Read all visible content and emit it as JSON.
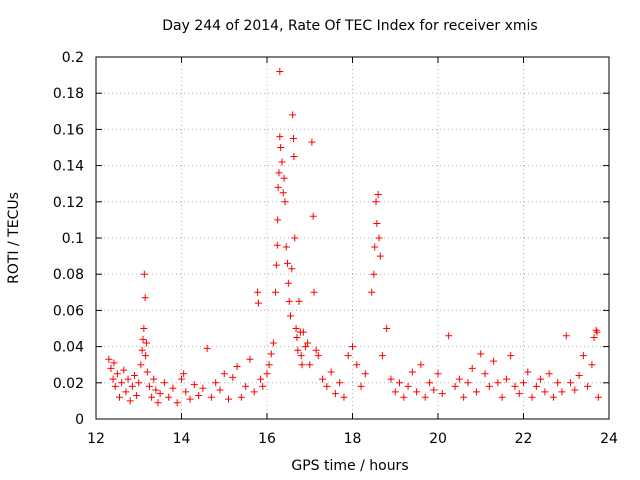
{
  "chart_data": {
    "type": "scatter",
    "title": "Day 244 of 2014, Rate Of TEC Index for receiver xmis",
    "xlabel": "GPS time / hours",
    "ylabel": "ROTI / TECUs",
    "xlim": [
      12,
      24
    ],
    "ylim": [
      0,
      0.2
    ],
    "xticks": [
      12,
      14,
      16,
      18,
      20,
      22,
      24
    ],
    "yticks": [
      0,
      0.02,
      0.04,
      0.06,
      0.08,
      0.1,
      0.12,
      0.14,
      0.16,
      0.18,
      0.2
    ],
    "xtick_labels": [
      "12",
      "14",
      "16",
      "18",
      "20",
      "22",
      "24"
    ],
    "ytick_labels": [
      "0",
      "0.02",
      "0.04",
      "0.06",
      "0.08",
      "0.1",
      "0.12",
      "0.14",
      "0.16",
      "0.18",
      "0.2"
    ],
    "grid": true,
    "marker": "+",
    "color": "#ff0000",
    "series": [
      {
        "name": "ROTI",
        "points": [
          [
            12.3,
            0.033
          ],
          [
            12.35,
            0.028
          ],
          [
            12.4,
            0.022
          ],
          [
            12.42,
            0.031
          ],
          [
            12.45,
            0.018
          ],
          [
            12.5,
            0.025
          ],
          [
            12.55,
            0.012
          ],
          [
            12.6,
            0.02
          ],
          [
            12.65,
            0.027
          ],
          [
            12.7,
            0.015
          ],
          [
            12.75,
            0.022
          ],
          [
            12.8,
            0.01
          ],
          [
            12.85,
            0.018
          ],
          [
            12.9,
            0.024
          ],
          [
            12.95,
            0.013
          ],
          [
            13.0,
            0.02
          ],
          [
            13.05,
            0.03
          ],
          [
            13.08,
            0.038
          ],
          [
            13.1,
            0.044
          ],
          [
            13.12,
            0.05
          ],
          [
            13.13,
            0.08
          ],
          [
            13.15,
            0.067
          ],
          [
            13.16,
            0.035
          ],
          [
            13.18,
            0.042
          ],
          [
            13.2,
            0.026
          ],
          [
            13.25,
            0.018
          ],
          [
            13.3,
            0.012
          ],
          [
            13.35,
            0.022
          ],
          [
            13.4,
            0.016
          ],
          [
            13.45,
            0.009
          ],
          [
            13.5,
            0.014
          ],
          [
            13.6,
            0.02
          ],
          [
            13.7,
            0.012
          ],
          [
            13.8,
            0.017
          ],
          [
            13.9,
            0.009
          ],
          [
            14.0,
            0.022
          ],
          [
            14.05,
            0.025
          ],
          [
            14.1,
            0.015
          ],
          [
            14.2,
            0.011
          ],
          [
            14.3,
            0.019
          ],
          [
            14.4,
            0.013
          ],
          [
            14.5,
            0.017
          ],
          [
            14.6,
            0.039
          ],
          [
            14.7,
            0.012
          ],
          [
            14.8,
            0.02
          ],
          [
            14.9,
            0.016
          ],
          [
            15.0,
            0.025
          ],
          [
            15.1,
            0.011
          ],
          [
            15.2,
            0.023
          ],
          [
            15.3,
            0.029
          ],
          [
            15.4,
            0.012
          ],
          [
            15.5,
            0.018
          ],
          [
            15.6,
            0.033
          ],
          [
            15.7,
            0.015
          ],
          [
            15.78,
            0.07
          ],
          [
            15.8,
            0.064
          ],
          [
            15.85,
            0.022
          ],
          [
            15.9,
            0.018
          ],
          [
            16.0,
            0.025
          ],
          [
            16.05,
            0.03
          ],
          [
            16.1,
            0.036
          ],
          [
            16.15,
            0.042
          ],
          [
            16.2,
            0.07
          ],
          [
            16.22,
            0.085
          ],
          [
            16.24,
            0.096
          ],
          [
            16.25,
            0.11
          ],
          [
            16.26,
            0.128
          ],
          [
            16.28,
            0.136
          ],
          [
            16.3,
            0.156
          ],
          [
            16.3,
            0.192
          ],
          [
            16.32,
            0.15
          ],
          [
            16.35,
            0.142
          ],
          [
            16.38,
            0.125
          ],
          [
            16.4,
            0.133
          ],
          [
            16.42,
            0.12
          ],
          [
            16.45,
            0.095
          ],
          [
            16.48,
            0.086
          ],
          [
            16.5,
            0.075
          ],
          [
            16.52,
            0.065
          ],
          [
            16.55,
            0.057
          ],
          [
            16.58,
            0.083
          ],
          [
            16.6,
            0.168
          ],
          [
            16.62,
            0.155
          ],
          [
            16.63,
            0.145
          ],
          [
            16.65,
            0.1
          ],
          [
            16.68,
            0.05
          ],
          [
            16.7,
            0.045
          ],
          [
            16.72,
            0.038
          ],
          [
            16.75,
            0.065
          ],
          [
            16.78,
            0.048
          ],
          [
            16.8,
            0.035
          ],
          [
            16.82,
            0.03
          ],
          [
            16.85,
            0.048
          ],
          [
            16.9,
            0.04
          ],
          [
            16.95,
            0.042
          ],
          [
            17.0,
            0.03
          ],
          [
            17.05,
            0.153
          ],
          [
            17.08,
            0.112
          ],
          [
            17.1,
            0.07
          ],
          [
            17.15,
            0.038
          ],
          [
            17.2,
            0.035
          ],
          [
            17.3,
            0.022
          ],
          [
            17.4,
            0.018
          ],
          [
            17.5,
            0.026
          ],
          [
            17.6,
            0.014
          ],
          [
            17.7,
            0.02
          ],
          [
            17.8,
            0.012
          ],
          [
            17.9,
            0.035
          ],
          [
            18.0,
            0.04
          ],
          [
            18.1,
            0.03
          ],
          [
            18.2,
            0.018
          ],
          [
            18.3,
            0.025
          ],
          [
            18.45,
            0.07
          ],
          [
            18.5,
            0.08
          ],
          [
            18.52,
            0.095
          ],
          [
            18.55,
            0.12
          ],
          [
            18.57,
            0.108
          ],
          [
            18.6,
            0.124
          ],
          [
            18.62,
            0.1
          ],
          [
            18.65,
            0.09
          ],
          [
            18.7,
            0.035
          ],
          [
            18.8,
            0.05
          ],
          [
            18.9,
            0.022
          ],
          [
            19.0,
            0.015
          ],
          [
            19.1,
            0.02
          ],
          [
            19.2,
            0.012
          ],
          [
            19.3,
            0.018
          ],
          [
            19.4,
            0.026
          ],
          [
            19.5,
            0.015
          ],
          [
            19.6,
            0.03
          ],
          [
            19.7,
            0.012
          ],
          [
            19.8,
            0.02
          ],
          [
            19.9,
            0.016
          ],
          [
            20.0,
            0.025
          ],
          [
            20.1,
            0.014
          ],
          [
            20.25,
            0.046
          ],
          [
            20.4,
            0.018
          ],
          [
            20.5,
            0.022
          ],
          [
            20.6,
            0.012
          ],
          [
            20.7,
            0.02
          ],
          [
            20.8,
            0.028
          ],
          [
            20.9,
            0.015
          ],
          [
            21.0,
            0.036
          ],
          [
            21.1,
            0.025
          ],
          [
            21.2,
            0.018
          ],
          [
            21.3,
            0.032
          ],
          [
            21.4,
            0.02
          ],
          [
            21.5,
            0.012
          ],
          [
            21.6,
            0.022
          ],
          [
            21.7,
            0.035
          ],
          [
            21.8,
            0.018
          ],
          [
            21.9,
            0.014
          ],
          [
            22.0,
            0.02
          ],
          [
            22.1,
            0.026
          ],
          [
            22.2,
            0.012
          ],
          [
            22.3,
            0.018
          ],
          [
            22.4,
            0.022
          ],
          [
            22.5,
            0.015
          ],
          [
            22.6,
            0.025
          ],
          [
            22.7,
            0.012
          ],
          [
            22.8,
            0.02
          ],
          [
            22.9,
            0.015
          ],
          [
            23.0,
            0.046
          ],
          [
            23.1,
            0.02
          ],
          [
            23.2,
            0.016
          ],
          [
            23.3,
            0.024
          ],
          [
            23.4,
            0.035
          ],
          [
            23.5,
            0.018
          ],
          [
            23.6,
            0.03
          ],
          [
            23.65,
            0.045
          ],
          [
            23.7,
            0.049
          ],
          [
            23.72,
            0.048
          ],
          [
            23.75,
            0.012
          ]
        ]
      }
    ]
  }
}
